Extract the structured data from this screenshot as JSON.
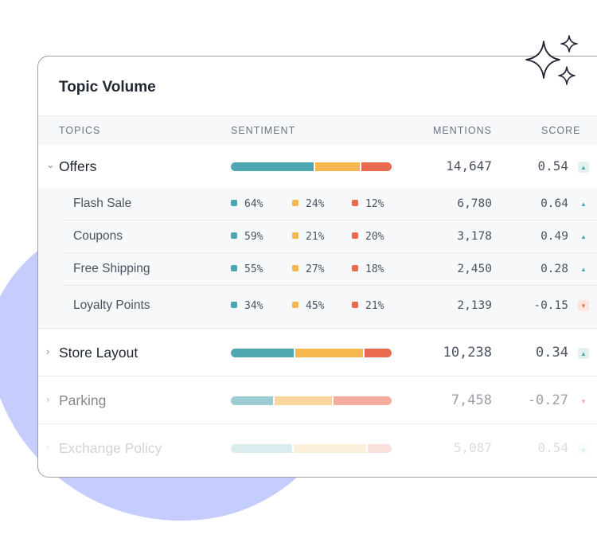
{
  "card": {
    "title": "Topic Volume"
  },
  "header": {
    "topics": "TOPICS",
    "sentiment": "SENTIMENT",
    "mentions": "MENTIONS",
    "score": "SCORE"
  },
  "colors": {
    "positive": "#4ea6b0",
    "neutral": "#f6b74e",
    "negative": "#ea6a4f",
    "accent_bg": "#c5cdfc"
  },
  "groups": [
    {
      "name": "Offers",
      "expanded": true,
      "sentiment": [
        50,
        27,
        18
      ],
      "mentions": "14,647",
      "score": "0.54",
      "trend": "up"
    },
    {
      "name": "Store Layout",
      "expanded": false,
      "sentiment": [
        40,
        43,
        17
      ],
      "mentions": "10,238",
      "score": "0.34",
      "trend": "up"
    },
    {
      "name": "Parking",
      "expanded": false,
      "sentiment": [
        27,
        36,
        37
      ],
      "mentions": "7,458",
      "score": "-0.27",
      "trend": "down"
    },
    {
      "name": "Exchange Policy",
      "expanded": false,
      "sentiment": [
        39,
        46,
        15
      ],
      "mentions": "5,087",
      "score": "0.54",
      "trend": "up"
    }
  ],
  "subtopics": [
    {
      "name": "Flash Sale",
      "positive": "64%",
      "neutral": "24%",
      "negative": "12%",
      "mentions": "6,780",
      "score": "0.64",
      "trend": "up"
    },
    {
      "name": "Coupons",
      "positive": "59%",
      "neutral": "21%",
      "negative": "20%",
      "mentions": "3,178",
      "score": "0.49",
      "trend": "up"
    },
    {
      "name": "Free Shipping",
      "positive": "55%",
      "neutral": "27%",
      "negative": "18%",
      "mentions": "2,450",
      "score": "0.28",
      "trend": "up"
    },
    {
      "name": "Loyalty Points",
      "positive": "34%",
      "neutral": "45%",
      "negative": "21%",
      "mentions": "2,139",
      "score": "-0.15",
      "trend": "down"
    }
  ]
}
